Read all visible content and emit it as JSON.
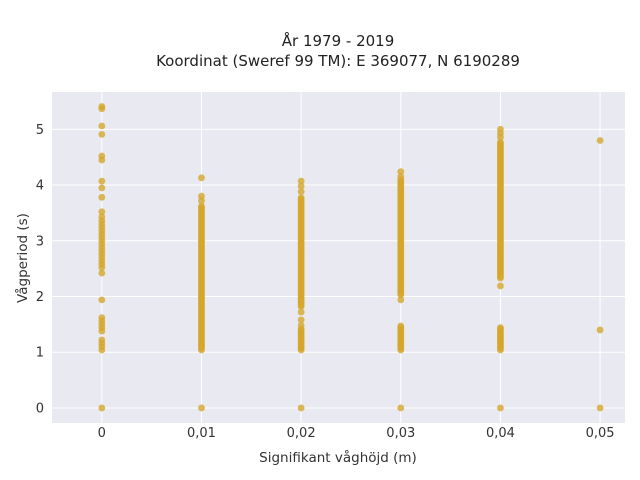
{
  "chart_data": {
    "type": "scatter",
    "title_lines": [
      "År 1979 - 2019",
      "Koordinat (Sweref 99 TM): E 369077, N 6190289"
    ],
    "xlabel": "Signifikant våghöjd (m)",
    "ylabel": "Vågperiod (s)",
    "x_ticks": [
      "0",
      "0,01",
      "0,02",
      "0,03",
      "0,04",
      "0,05"
    ],
    "x_tick_values": [
      0,
      0.01,
      0.02,
      0.03,
      0.04,
      0.05
    ],
    "y_ticks": [
      "0",
      "1",
      "2",
      "3",
      "4",
      "5"
    ],
    "y_tick_values": [
      0,
      1,
      2,
      3,
      4,
      5
    ],
    "xlim": [
      -0.005,
      0.0525
    ],
    "ylim": [
      -0.27,
      5.67
    ],
    "grid": true,
    "marker_color": "#d4a62a",
    "plot_background": "#e9e9f1",
    "grid_color": "#ffffff",
    "points": [
      {
        "x": 0,
        "y": 5.41
      },
      {
        "x": 0,
        "y": 5.37
      },
      {
        "x": 0,
        "y": 5.06
      },
      {
        "x": 0,
        "y": 4.91
      },
      {
        "x": 0,
        "y": 4.52
      },
      {
        "x": 0,
        "y": 4.45
      },
      {
        "x": 0,
        "y": 4.07
      },
      {
        "x": 0,
        "y": 3.95
      },
      {
        "x": 0,
        "y": 3.78
      },
      {
        "x": 0,
        "y": 3.52
      },
      {
        "x": 0,
        "y": 3.43
      },
      {
        "x": 0,
        "y": 3.36
      },
      {
        "x": 0,
        "y": 3.3
      },
      {
        "x": 0,
        "y": 3.24
      },
      {
        "x": 0,
        "y": 3.18
      },
      {
        "x": 0,
        "y": 3.12
      },
      {
        "x": 0,
        "y": 3.06
      },
      {
        "x": 0,
        "y": 3.0
      },
      {
        "x": 0,
        "y": 2.94
      },
      {
        "x": 0,
        "y": 2.88
      },
      {
        "x": 0,
        "y": 2.82
      },
      {
        "x": 0,
        "y": 2.76
      },
      {
        "x": 0,
        "y": 2.7
      },
      {
        "x": 0,
        "y": 2.64
      },
      {
        "x": 0,
        "y": 2.58
      },
      {
        "x": 0,
        "y": 2.52
      },
      {
        "x": 0,
        "y": 2.42
      },
      {
        "x": 0,
        "y": 1.94
      },
      {
        "x": 0,
        "y": 1.62
      },
      {
        "x": 0,
        "y": 1.56
      },
      {
        "x": 0,
        "y": 1.5
      },
      {
        "x": 0,
        "y": 1.44
      },
      {
        "x": 0,
        "y": 1.38
      },
      {
        "x": 0,
        "y": 1.22
      },
      {
        "x": 0,
        "y": 1.16
      },
      {
        "x": 0,
        "y": 1.1
      },
      {
        "x": 0,
        "y": 1.04
      },
      {
        "x": 0,
        "y": 0.0
      },
      {
        "x": 0.01,
        "y": 4.13
      },
      {
        "x": 0.01,
        "y": 3.8
      },
      {
        "x": 0.01,
        "y": 3.72
      },
      {
        "x": 0.01,
        "y": 0.0
      },
      {
        "x": 0.02,
        "y": 4.07
      },
      {
        "x": 0.02,
        "y": 3.98
      },
      {
        "x": 0.02,
        "y": 3.88
      },
      {
        "x": 0.02,
        "y": 1.72
      },
      {
        "x": 0.02,
        "y": 1.58
      },
      {
        "x": 0.02,
        "y": 1.48
      },
      {
        "x": 0.02,
        "y": 0.0
      },
      {
        "x": 0.03,
        "y": 4.24
      },
      {
        "x": 0.03,
        "y": 4.15
      },
      {
        "x": 0.03,
        "y": 1.94
      },
      {
        "x": 0.03,
        "y": 0.0
      },
      {
        "x": 0.04,
        "y": 5.0
      },
      {
        "x": 0.04,
        "y": 4.93
      },
      {
        "x": 0.04,
        "y": 4.86
      },
      {
        "x": 0.04,
        "y": 2.19
      },
      {
        "x": 0.04,
        "y": 0.0
      },
      {
        "x": 0.05,
        "y": 4.8
      },
      {
        "x": 0.05,
        "y": 1.4
      },
      {
        "x": 0.05,
        "y": 0.0
      }
    ],
    "dense_bands": [
      {
        "x": 0.01,
        "y_from": 1.04,
        "y_to": 3.65
      },
      {
        "x": 0.02,
        "y_from": 1.04,
        "y_to": 1.42
      },
      {
        "x": 0.02,
        "y_from": 1.82,
        "y_to": 3.8
      },
      {
        "x": 0.03,
        "y_from": 1.04,
        "y_to": 1.48
      },
      {
        "x": 0.03,
        "y_from": 2.03,
        "y_to": 4.1
      },
      {
        "x": 0.04,
        "y_from": 1.04,
        "y_to": 1.46
      },
      {
        "x": 0.04,
        "y_from": 2.33,
        "y_to": 4.78
      }
    ]
  }
}
